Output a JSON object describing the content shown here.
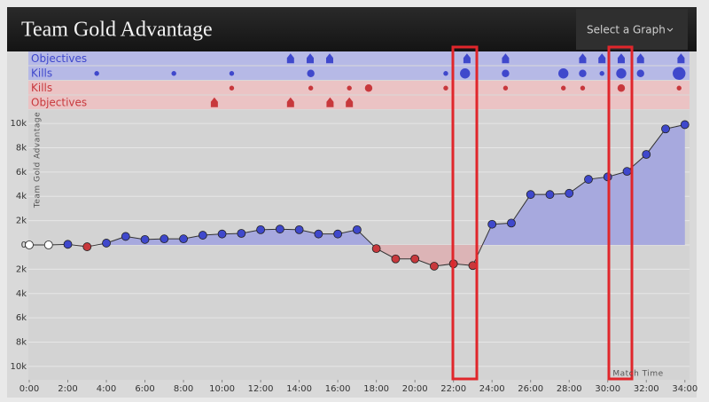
{
  "chart_data": {
    "type": "area",
    "title": "Team Gold Advantage",
    "dropdown": "Select a Graph",
    "ylabel": "Team Gold Advantage",
    "xlabel": "Match Time",
    "x": [
      0,
      1,
      2,
      3,
      4,
      5,
      6,
      7,
      8,
      9,
      10,
      11,
      12,
      13,
      14,
      15,
      16,
      17,
      18,
      19,
      20,
      21,
      22,
      23,
      24,
      25,
      26,
      27,
      28,
      29,
      30,
      31,
      32,
      33,
      34
    ],
    "values": [
      0,
      0,
      50,
      -150,
      150,
      700,
      450,
      500,
      500,
      800,
      900,
      950,
      1250,
      1300,
      1250,
      900,
      900,
      1250,
      -300,
      -1150,
      -1150,
      -1750,
      -1550,
      -1700,
      1700,
      1800,
      4150,
      4150,
      4250,
      5400,
      5600,
      6050,
      7450,
      9550,
      9900
    ],
    "positive_color": "#3f48cc",
    "negative_color": "#c8383c",
    "zero_color": "#ffffff",
    "positive_fill": "#a7a9de",
    "negative_fill": "#dcb4b6",
    "xlim": [
      0,
      34.24
    ],
    "ylim": [
      -11100,
      11100
    ],
    "xticks": [
      {
        "value": 0,
        "label": "0:00"
      },
      {
        "value": 2,
        "label": "2:00"
      },
      {
        "value": 4,
        "label": "4:00"
      },
      {
        "value": 6,
        "label": "6:00"
      },
      {
        "value": 8,
        "label": "8:00"
      },
      {
        "value": 10,
        "label": "10:00"
      },
      {
        "value": 12,
        "label": "12:00"
      },
      {
        "value": 14,
        "label": "14:00"
      },
      {
        "value": 16,
        "label": "16:00"
      },
      {
        "value": 18,
        "label": "18:00"
      },
      {
        "value": 20,
        "label": "20:00"
      },
      {
        "value": 22,
        "label": "22:00"
      },
      {
        "value": 24,
        "label": "24:00"
      },
      {
        "value": 26,
        "label": "26:00"
      },
      {
        "value": 28,
        "label": "28:00"
      },
      {
        "value": 30,
        "label": "30:00"
      },
      {
        "value": 32,
        "label": "32:00"
      },
      {
        "value": 34,
        "label": "34:00"
      }
    ],
    "yticks": [
      {
        "value": 10000,
        "label": "10k"
      },
      {
        "value": 8000,
        "label": "8k"
      },
      {
        "value": 6000,
        "label": "6k"
      },
      {
        "value": 4000,
        "label": "4k"
      },
      {
        "value": 2000,
        "label": "2k"
      },
      0,
      {
        "value": -2000,
        "label": "2k"
      },
      {
        "value": -4000,
        "label": "4k"
      },
      {
        "value": -6000,
        "label": "6k"
      },
      {
        "value": -8000,
        "label": "8k"
      },
      {
        "value": -10000,
        "label": "10k"
      }
    ],
    "grid": true,
    "event_rows": [
      {
        "label": "Objectives",
        "color": "#3f48cc",
        "background": "#b6b9e6",
        "times": [
          13.55,
          14.57,
          15.58,
          22.7,
          24.7,
          28.7,
          29.7,
          30.7,
          31.7,
          33.8
        ]
      },
      {
        "label": "Kills",
        "color": "#3f48cc",
        "background": "#b6b9e6",
        "times": [
          3.5,
          7.5,
          10.5,
          14.6,
          21.6,
          22.6,
          24.7,
          27.7,
          28.7,
          29.7,
          30.7,
          31.7,
          33.7
        ],
        "sizes": [
          1,
          1,
          1,
          2,
          1,
          3,
          2,
          3,
          2,
          1,
          3,
          2,
          4
        ]
      },
      {
        "label": "Kills",
        "color": "#c8383c",
        "background": "#ebc3c4",
        "times": [
          10.5,
          14.6,
          16.6,
          17.6,
          21.6,
          24.7,
          27.7,
          28.7,
          30.7,
          33.7
        ],
        "sizes": [
          1,
          1,
          1,
          2,
          1,
          1,
          1,
          1,
          2,
          1
        ]
      },
      {
        "label": "Objectives",
        "color": "#c8383c",
        "background": "#ebc3c4",
        "times": [
          9.6,
          13.55,
          15.6,
          16.6
        ]
      }
    ]
  }
}
